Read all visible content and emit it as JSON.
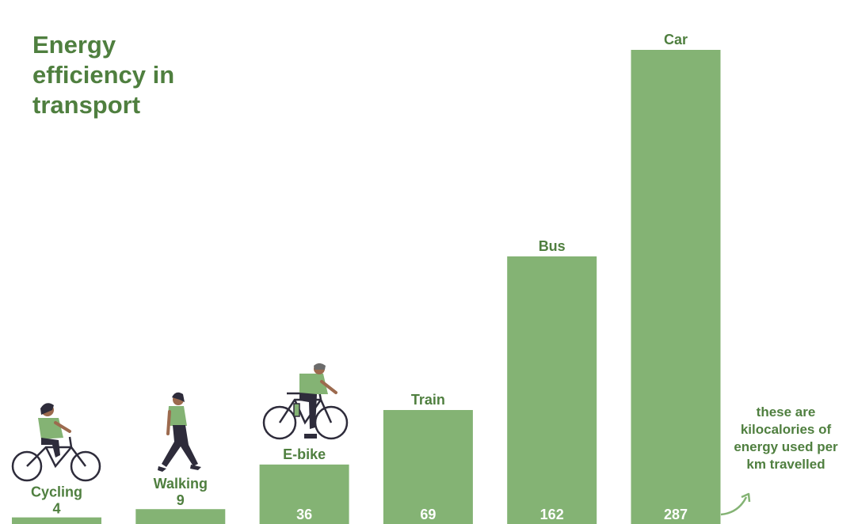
{
  "colors": {
    "bar": "#84b374",
    "text": "#4f7f3f",
    "figure_green": "#84b374",
    "figure_dark": "#2e2c3b",
    "skin": "#9c6a4e"
  },
  "chart_data": {
    "type": "bar",
    "title": "Energy efficiency in transport",
    "categories": [
      "Cycling",
      "Walking",
      "E-bike",
      "Train",
      "Bus",
      "Car"
    ],
    "values": [
      4,
      9,
      36,
      69,
      162,
      287
    ],
    "ylim": [
      0,
      287
    ],
    "grid": false,
    "annotations": [
      "these are kilocalories of energy used per km travelled"
    ],
    "icons": [
      "cyclist-icon",
      "walker-icon",
      "ebike-rider-icon"
    ]
  }
}
